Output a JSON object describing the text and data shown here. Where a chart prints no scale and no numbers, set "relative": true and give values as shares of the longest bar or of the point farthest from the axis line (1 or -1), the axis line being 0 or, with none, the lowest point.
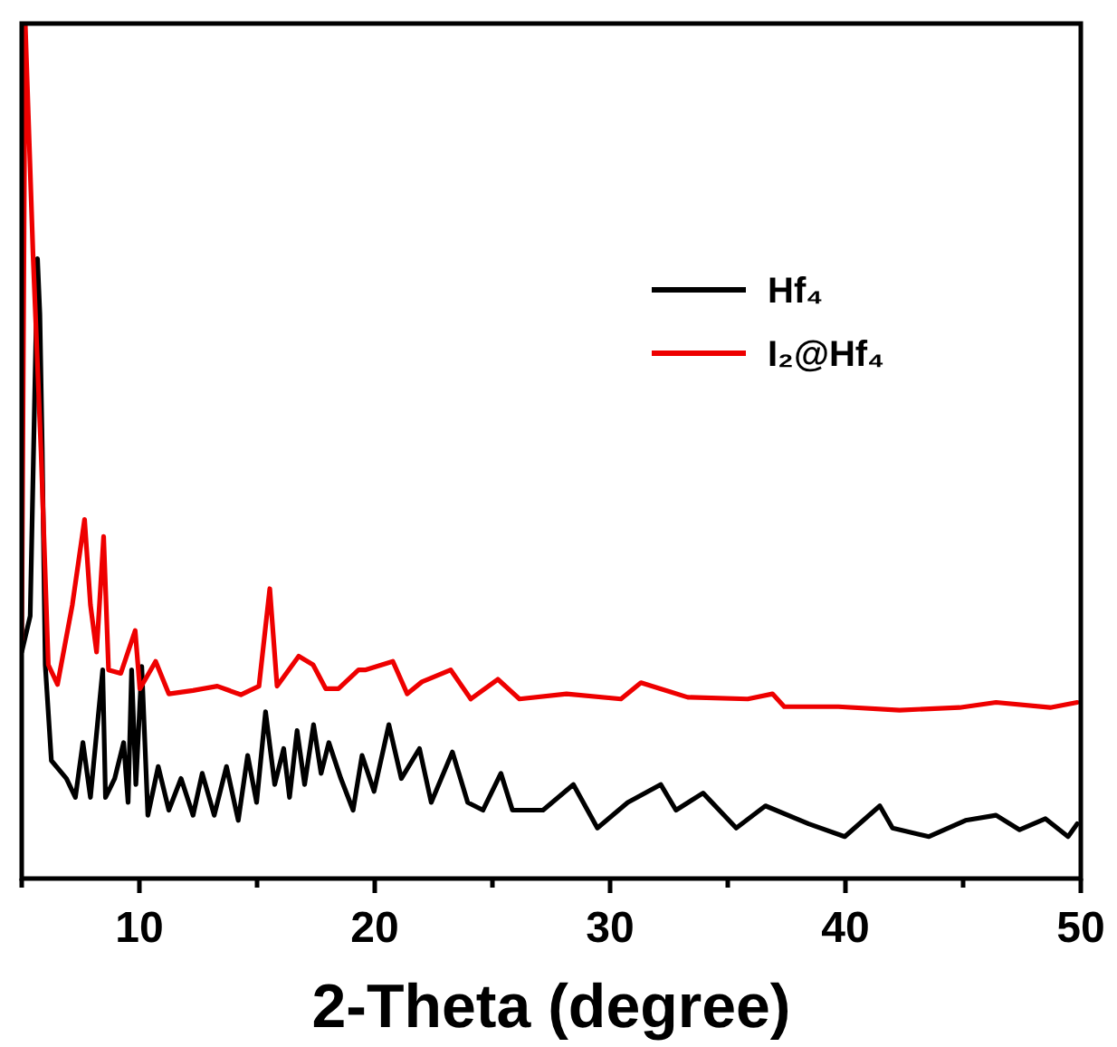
{
  "chart_data": {
    "type": "line",
    "relative": true,
    "xlabel": "2-Theta (degree)",
    "xlim": [
      5,
      50
    ],
    "xticks": [
      {
        "value": 5,
        "label": null
      },
      10,
      {
        "value": 15,
        "label": null
      },
      20,
      {
        "value": 25,
        "label": null
      },
      30,
      {
        "value": 35,
        "label": null
      },
      40,
      {
        "value": 45,
        "label": null
      },
      50
    ],
    "tick_labels": "x",
    "grid": false,
    "legend": "top right",
    "marker": "none",
    "line_style": "solid",
    "series": [
      {
        "name": "Hf₄",
        "color": "#000000",
        "x": [
          5.0,
          5.36,
          5.67,
          5.77,
          5.87,
          6.0,
          6.26,
          6.9,
          7.28,
          7.6,
          7.92,
          8.44,
          8.56,
          8.95,
          9.33,
          9.52,
          9.67,
          9.85,
          10.1,
          10.36,
          10.8,
          11.25,
          11.77,
          12.28,
          12.67,
          13.18,
          13.7,
          14.2,
          14.6,
          14.98,
          15.36,
          15.75,
          16.13,
          16.38,
          16.7,
          17.02,
          17.4,
          17.72,
          18.05,
          18.56,
          19.08,
          19.46,
          19.97,
          20.6,
          21.13,
          21.9,
          22.4,
          23.3,
          23.95,
          24.6,
          25.36,
          25.85,
          27.15,
          28.44,
          29.46,
          30.75,
          32.15,
          32.8,
          33.95,
          35.36,
          36.6,
          38.44,
          39.97,
          41.46,
          42.0,
          43.55,
          45.1,
          46.4,
          47.4,
          48.5,
          49.46,
          49.85
        ],
        "values": [
          0.265,
          0.307,
          0.725,
          0.66,
          0.505,
          0.25,
          0.138,
          0.117,
          0.095,
          0.159,
          0.095,
          0.244,
          0.095,
          0.117,
          0.159,
          0.089,
          0.244,
          0.11,
          0.248,
          0.074,
          0.131,
          0.08,
          0.117,
          0.074,
          0.123,
          0.074,
          0.131,
          0.068,
          0.144,
          0.089,
          0.195,
          0.11,
          0.152,
          0.095,
          0.173,
          0.11,
          0.18,
          0.123,
          0.159,
          0.117,
          0.08,
          0.144,
          0.102,
          0.18,
          0.117,
          0.152,
          0.089,
          0.148,
          0.089,
          0.08,
          0.123,
          0.08,
          0.08,
          0.11,
          0.059,
          0.089,
          0.11,
          0.08,
          0.1,
          0.059,
          0.085,
          0.064,
          0.049,
          0.085,
          0.059,
          0.049,
          0.068,
          0.074,
          0.057,
          0.07,
          0.049,
          0.064
        ]
      },
      {
        "name": "I₂@Hf₄",
        "color": "#ee0000",
        "x": [
          5.0,
          5.15,
          5.48,
          5.82,
          6.13,
          6.52,
          7.15,
          7.67,
          7.92,
          8.18,
          8.48,
          8.69,
          9.21,
          9.82,
          10.02,
          10.69,
          11.25,
          12.28,
          13.31,
          14.31,
          15.08,
          15.54,
          15.85,
          16.77,
          17.38,
          17.92,
          18.46,
          19.31,
          19.59,
          20.77,
          21.38,
          22.0,
          23.23,
          24.08,
          25.23,
          26.15,
          28.15,
          30.46,
          31.31,
          33.3,
          35.85,
          36.9,
          37.4,
          39.7,
          42.3,
          44.85,
          46.4,
          48.7,
          49.85
        ],
        "values": [
          0.28,
          1.0,
          0.73,
          0.5,
          0.25,
          0.227,
          0.32,
          0.42,
          0.32,
          0.265,
          0.4,
          0.244,
          0.24,
          0.29,
          0.222,
          0.254,
          0.216,
          0.22,
          0.225,
          0.215,
          0.225,
          0.339,
          0.225,
          0.26,
          0.25,
          0.222,
          0.222,
          0.244,
          0.244,
          0.254,
          0.216,
          0.23,
          0.244,
          0.21,
          0.233,
          0.21,
          0.216,
          0.21,
          0.229,
          0.212,
          0.21,
          0.216,
          0.201,
          0.201,
          0.197,
          0.2,
          0.206,
          0.2,
          0.206
        ]
      }
    ]
  }
}
